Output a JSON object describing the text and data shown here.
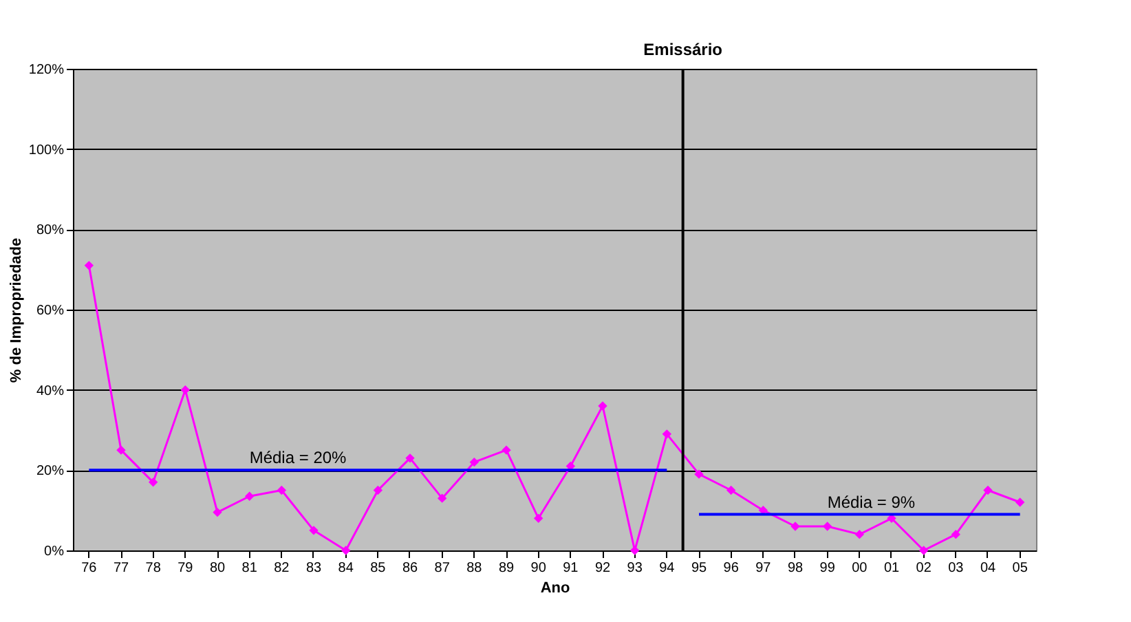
{
  "chart_data": {
    "type": "line",
    "xlabel": "Ano",
    "ylabel": "% de Impropriedade",
    "categories": [
      "76",
      "77",
      "78",
      "79",
      "80",
      "81",
      "82",
      "83",
      "84",
      "85",
      "86",
      "87",
      "88",
      "89",
      "90",
      "91",
      "92",
      "93",
      "94",
      "95",
      "96",
      "97",
      "98",
      "99",
      "00",
      "01",
      "02",
      "03",
      "04",
      "05"
    ],
    "series": [
      {
        "color": "#ff00ff",
        "marker": "diamond",
        "values": [
          71,
          25,
          17,
          40,
          9.5,
          13.5,
          15,
          5,
          0,
          15,
          23,
          13,
          22,
          25,
          8,
          21,
          36,
          0,
          29,
          19,
          15,
          10,
          6,
          6,
          4,
          8,
          0,
          4,
          15,
          12
        ]
      },
      {
        "color": "#0000ff",
        "marker": "none",
        "values": [
          20,
          20,
          20,
          20,
          20,
          20,
          20,
          20,
          20,
          20,
          20,
          20,
          20,
          20,
          20,
          20,
          20,
          20,
          20,
          null,
          null,
          null,
          null,
          null,
          null,
          null,
          null,
          null,
          null,
          null
        ]
      },
      {
        "color": "#0000ff",
        "marker": "none",
        "values": [
          null,
          null,
          null,
          null,
          null,
          null,
          null,
          null,
          null,
          null,
          null,
          null,
          null,
          null,
          null,
          null,
          null,
          null,
          null,
          9,
          9,
          9,
          9,
          9,
          9,
          9,
          9,
          9,
          9,
          9
        ]
      }
    ],
    "ylim": [
      0,
      120
    ],
    "yticks": [
      {
        "value": 0,
        "label": "0%"
      },
      {
        "value": 20,
        "label": "20%"
      },
      {
        "value": 40,
        "label": "40%"
      },
      {
        "value": 60,
        "label": "60%"
      },
      {
        "value": 80,
        "label": "80%"
      },
      {
        "value": 100,
        "label": "100%"
      },
      {
        "value": 120,
        "label": "120%"
      }
    ],
    "grid": "y",
    "line_style": "solid",
    "ref_lines": [
      {
        "axis": "x",
        "value": "95",
        "label": "Emissário",
        "color": "#000000"
      }
    ],
    "annotations": [
      {
        "text": "Média = 20%",
        "x": "81",
        "y": 20
      },
      {
        "text": "Média = 9%",
        "x": "99",
        "y": 9
      }
    ]
  }
}
